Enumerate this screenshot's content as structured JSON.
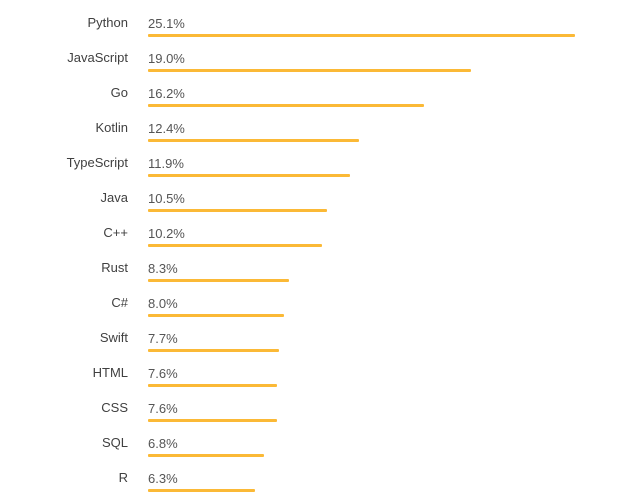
{
  "colors": {
    "bar": "#fbb936"
  },
  "chart_data": {
    "type": "bar",
    "orientation": "horizontal",
    "categories": [
      "Python",
      "JavaScript",
      "Go",
      "Kotlin",
      "TypeScript",
      "Java",
      "C++",
      "Rust",
      "C#",
      "Swift",
      "HTML",
      "CSS",
      "SQL",
      "R"
    ],
    "values": [
      25.1,
      19.0,
      16.2,
      12.4,
      11.9,
      10.5,
      10.2,
      8.3,
      8.0,
      7.7,
      7.6,
      7.6,
      6.8,
      6.3
    ],
    "value_labels": [
      "25.1%",
      "19.0%",
      "16.2%",
      "12.4%",
      "11.9%",
      "10.5%",
      "10.2%",
      "8.3%",
      "8.0%",
      "7.7%",
      "7.6%",
      "7.6%",
      "6.8%",
      "6.3%"
    ],
    "unit": "%",
    "title": "",
    "xlabel": "",
    "ylabel": "",
    "xlim": [
      0,
      25.1
    ],
    "grid": false,
    "legend": "none"
  }
}
